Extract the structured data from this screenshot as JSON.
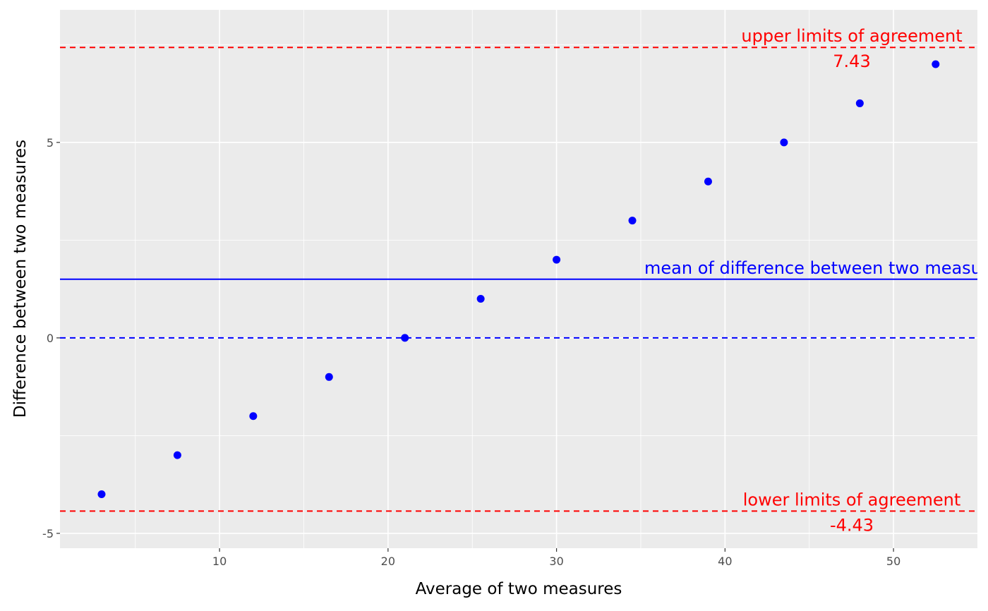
{
  "chart_data": {
    "type": "scatter",
    "x_label": "Average of two measures",
    "y_label": "Difference between two measures",
    "series": [
      {
        "color": "#0000ff",
        "x": [
          3,
          7.5,
          12,
          16.5,
          21,
          25.5,
          30,
          34.5,
          39,
          43.5,
          48,
          52.5
        ],
        "values": [
          -4,
          -3,
          -2,
          -1,
          0,
          1,
          2,
          3,
          4,
          5,
          6,
          7
        ]
      }
    ],
    "xlim": [
      0.53,
      54.98
    ],
    "ylim": [
      -5.38,
      8.39
    ],
    "xticks": [
      10,
      20,
      30,
      40,
      50
    ],
    "yticks": [
      -5,
      0,
      5
    ],
    "x_minor_grid": [
      5,
      15,
      25,
      35,
      45
    ],
    "y_minor_grid": [
      -2.5,
      2.5,
      7.5
    ],
    "grid": true,
    "reference_lines": [
      {
        "value": 7.43,
        "label": "upper limits of agreement",
        "color": "#ff0000",
        "dashed": true,
        "show_value": true
      },
      {
        "value": 1.5,
        "label": "mean of difference between two measures",
        "color": "#0000ff",
        "dashed": false,
        "show_value": false
      },
      {
        "value": 0,
        "color": "#0000ff",
        "dashed": true,
        "show_value": false
      },
      {
        "value": -4.43,
        "label": "lower limits of agreement",
        "color": "#ff0000",
        "dashed": true,
        "show_value": true
      }
    ]
  }
}
